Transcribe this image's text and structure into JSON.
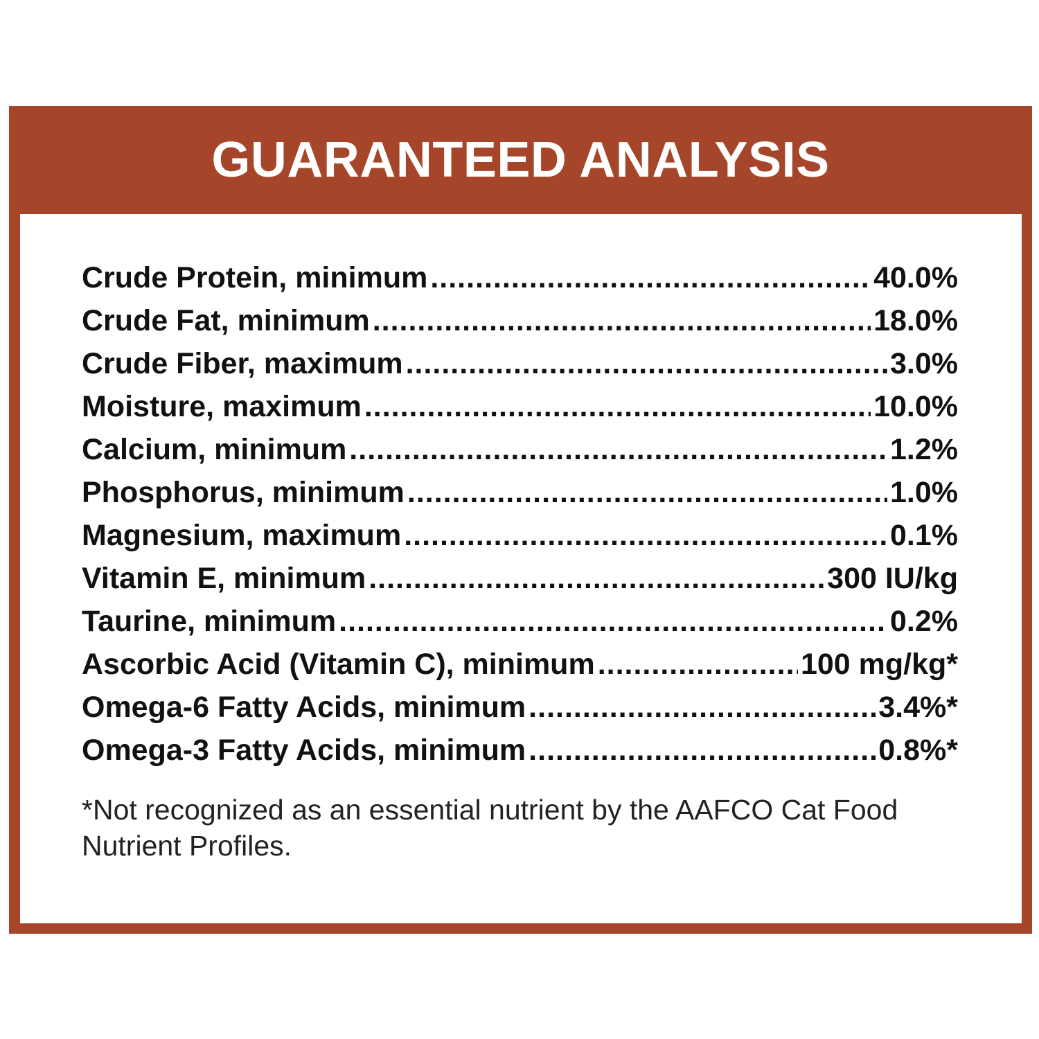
{
  "title": "GUARANTEED ANALYSIS",
  "colors": {
    "brand": "#a5452a",
    "text": "#111111"
  },
  "rows": [
    {
      "label": "Crude Protein, minimum",
      "value": "40.0%"
    },
    {
      "label": "Crude Fat, minimum",
      "value": "18.0%"
    },
    {
      "label": "Crude Fiber, maximum",
      "value": "3.0%"
    },
    {
      "label": "Moisture, maximum",
      "value": "10.0%"
    },
    {
      "label": "Calcium, minimum",
      "value": "1.2%"
    },
    {
      "label": "Phosphorus, minimum",
      "value": "1.0%"
    },
    {
      "label": "Magnesium, maximum",
      "value": "0.1%"
    },
    {
      "label": "Vitamin E, minimum",
      "value": "300 IU/kg"
    },
    {
      "label": "Taurine, minimum",
      "value": "0.2%"
    },
    {
      "label": "Ascorbic Acid (Vitamin C), minimum",
      "value": "100 mg/kg*"
    },
    {
      "label": "Omega-6 Fatty Acids, minimum",
      "value": "3.4%*"
    },
    {
      "label": "Omega-3 Fatty Acids, minimum",
      "value": "0.8%*"
    }
  ],
  "footnote": "*Not recognized as an essential nutrient by the AAFCO Cat Food Nutrient Profiles."
}
